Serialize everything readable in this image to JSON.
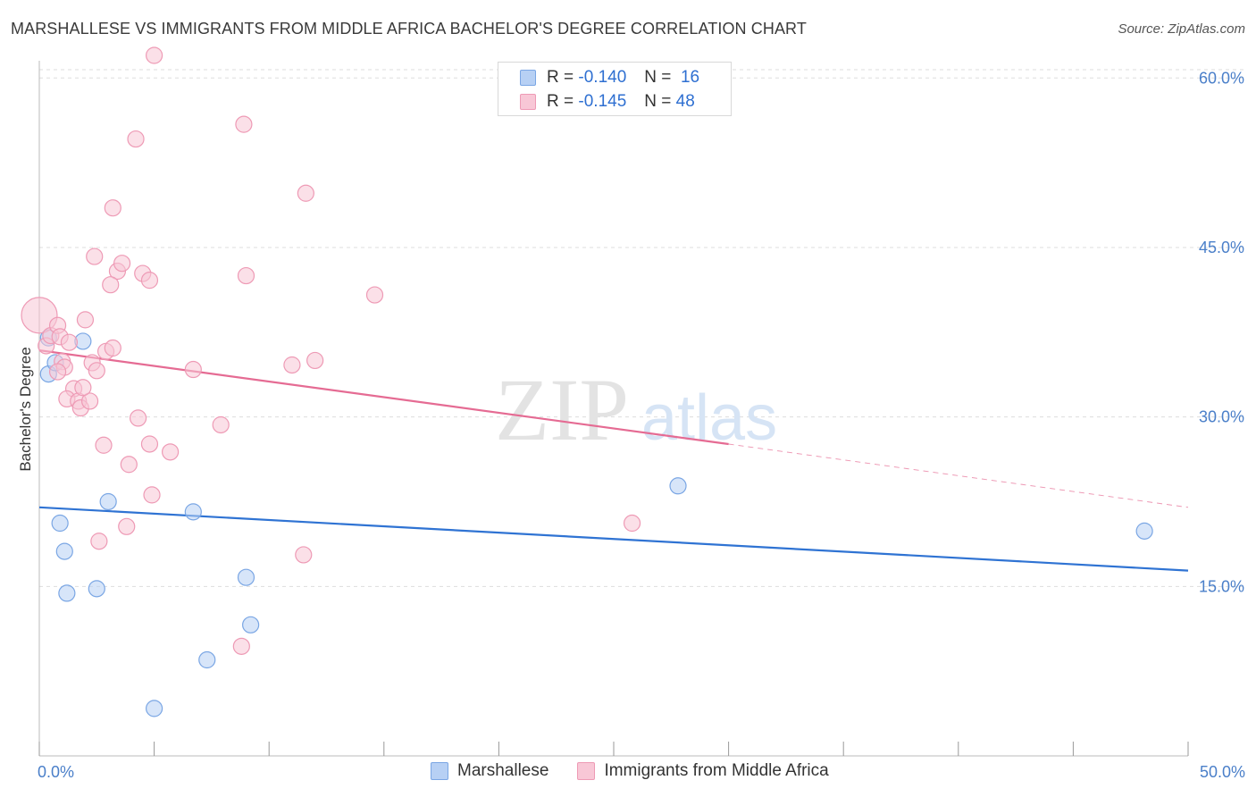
{
  "title": "MARSHALLESE VS IMMIGRANTS FROM MIDDLE AFRICA BACHELOR'S DEGREE CORRELATION CHART",
  "source": "Source: ZipAtlas.com",
  "watermark": {
    "zip": "ZIP",
    "atlas": "atlas"
  },
  "legend_top": [
    {
      "r_label": "R =",
      "r_value": "-0.140",
      "n_label": "N =",
      "n_value": "16"
    },
    {
      "r_label": "R =",
      "r_value": "-0.145",
      "n_label": "N =",
      "n_value": "48"
    }
  ],
  "legend_bottom": [
    "Marshallese",
    "Immigrants from Middle Africa"
  ],
  "colors": {
    "blue_fill": "#b7d0f4",
    "blue_stroke": "#7aa6e4",
    "blue_line": "#2f73d3",
    "pink_fill": "#f8c7d6",
    "pink_stroke": "#ee9ab5",
    "pink_line": "#e56b93",
    "tick": "#4a7fc9",
    "grid": "#dddddd"
  },
  "chart_data": {
    "type": "scatter",
    "title": "MARSHALLESE VS IMMIGRANTS FROM MIDDLE AFRICA BACHELOR'S DEGREE CORRELATION CHART",
    "xlabel": "",
    "ylabel": "Bachelor's Degree",
    "xlim": [
      0,
      50
    ],
    "ylim": [
      0,
      62
    ],
    "y_ticks": [
      15,
      30,
      45,
      60
    ],
    "y_tick_labels": [
      "15.0%",
      "30.0%",
      "45.0%",
      "60.0%"
    ],
    "x_tick_labels": [
      "0.0%",
      "50.0%"
    ],
    "x_tick_label_values": [
      0,
      50
    ],
    "x_minor_ticks": [
      0,
      5,
      10,
      15,
      20,
      25,
      30,
      35,
      40,
      45,
      50
    ],
    "grid": true,
    "series": [
      {
        "name": "Marshallese",
        "color": "blue",
        "points": [
          [
            0.4,
            37.0
          ],
          [
            0.4,
            33.8
          ],
          [
            0.7,
            34.8
          ],
          [
            1.9,
            36.7
          ],
          [
            0.9,
            20.6
          ],
          [
            1.1,
            18.1
          ],
          [
            1.2,
            14.4
          ],
          [
            2.5,
            14.8
          ],
          [
            3.0,
            22.5
          ],
          [
            6.7,
            21.6
          ],
          [
            9.0,
            15.8
          ],
          [
            9.2,
            11.6
          ],
          [
            7.3,
            8.5
          ],
          [
            5.0,
            4.2
          ],
          [
            27.8,
            23.9
          ],
          [
            48.1,
            19.9
          ]
        ],
        "trend": {
          "x": [
            0,
            50
          ],
          "y": [
            22.0,
            16.4
          ]
        }
      },
      {
        "name": "Immigrants from Middle Africa",
        "color": "pink",
        "points": [
          [
            0.0,
            39.0
          ],
          [
            0.3,
            36.3
          ],
          [
            0.5,
            37.2
          ],
          [
            0.8,
            38.1
          ],
          [
            0.9,
            37.1
          ],
          [
            1.0,
            34.9
          ],
          [
            1.1,
            34.4
          ],
          [
            0.8,
            34.0
          ],
          [
            1.3,
            36.6
          ],
          [
            1.5,
            32.5
          ],
          [
            1.2,
            31.6
          ],
          [
            1.7,
            31.4
          ],
          [
            1.8,
            30.8
          ],
          [
            2.2,
            31.4
          ],
          [
            1.9,
            32.6
          ],
          [
            2.0,
            38.6
          ],
          [
            2.3,
            34.8
          ],
          [
            2.5,
            34.1
          ],
          [
            2.9,
            35.8
          ],
          [
            3.2,
            36.1
          ],
          [
            2.4,
            44.2
          ],
          [
            3.4,
            42.9
          ],
          [
            3.1,
            41.7
          ],
          [
            3.6,
            43.6
          ],
          [
            3.2,
            48.5
          ],
          [
            4.2,
            54.6
          ],
          [
            4.5,
            42.7
          ],
          [
            4.8,
            42.1
          ],
          [
            8.9,
            55.9
          ],
          [
            9.0,
            42.5
          ],
          [
            11.6,
            49.8
          ],
          [
            14.6,
            40.8
          ],
          [
            11.0,
            34.6
          ],
          [
            12.0,
            35.0
          ],
          [
            6.7,
            34.2
          ],
          [
            4.3,
            29.9
          ],
          [
            4.8,
            27.6
          ],
          [
            5.7,
            26.9
          ],
          [
            7.9,
            29.3
          ],
          [
            2.8,
            27.5
          ],
          [
            3.9,
            25.8
          ],
          [
            4.9,
            23.1
          ],
          [
            3.8,
            20.3
          ],
          [
            2.6,
            19.0
          ],
          [
            11.5,
            17.8
          ],
          [
            8.8,
            9.7
          ],
          [
            25.8,
            20.6
          ],
          [
            5.0,
            62.0
          ]
        ],
        "trend": {
          "x": [
            0,
            30
          ],
          "y": [
            35.9,
            27.6
          ]
        },
        "trend_dashed": {
          "x": [
            30,
            50
          ],
          "y": [
            27.6,
            22.0
          ]
        }
      }
    ]
  }
}
